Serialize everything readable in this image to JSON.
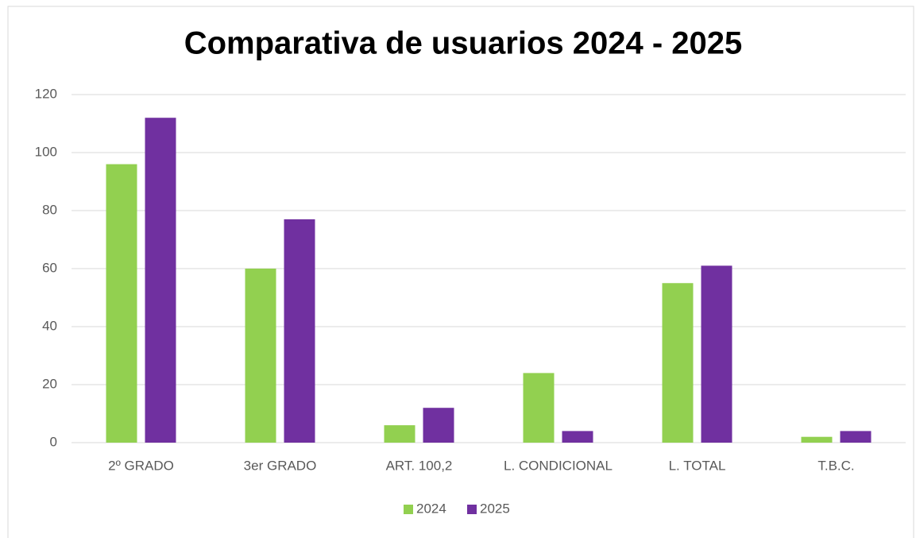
{
  "chart_data": {
    "type": "bar",
    "title": "Comparativa de usuarios 2024 - 2025",
    "categories": [
      "2º GRADO",
      "3er GRADO",
      "ART. 100,2",
      "L. CONDICIONAL",
      "L. TOTAL",
      "T.B.C."
    ],
    "series": [
      {
        "name": "2024",
        "color": "#92d050",
        "values": [
          96,
          60,
          6,
          24,
          55,
          2
        ]
      },
      {
        "name": "2025",
        "color": "#7030a0",
        "values": [
          112,
          77,
          12,
          4,
          61,
          4
        ]
      }
    ],
    "ylim": [
      0,
      120
    ],
    "yticks": [
      0,
      20,
      40,
      60,
      80,
      100,
      120
    ],
    "grid": true,
    "legend": "bottom"
  }
}
